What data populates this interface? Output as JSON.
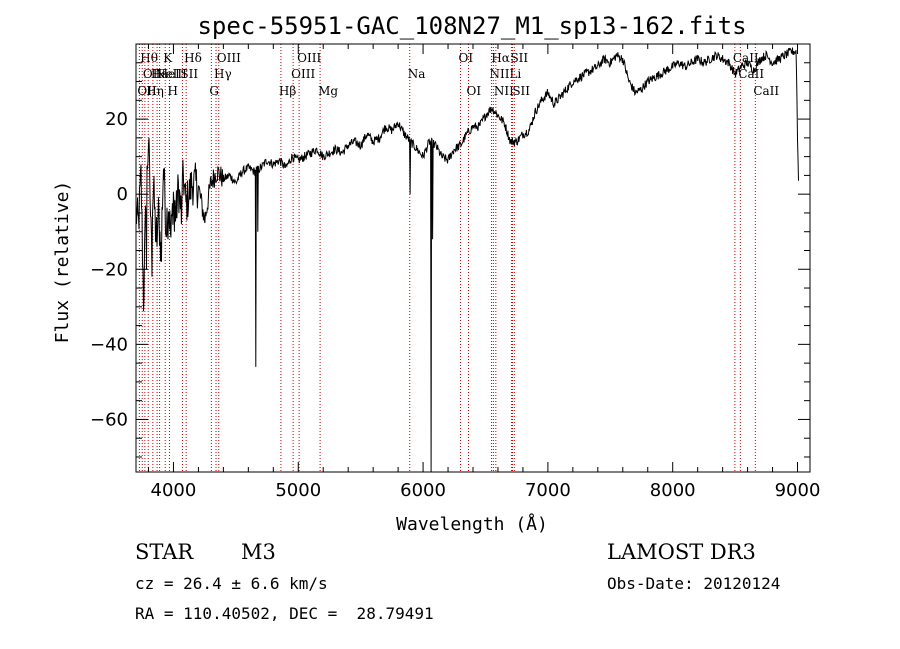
{
  "chart_data": {
    "type": "line",
    "title": "spec-55951-GAC_108N27_M1_sp13-162.fits",
    "xlabel": "Wavelength (Å)",
    "ylabel": "Flux (relative)",
    "xlim": [
      3700,
      9100
    ],
    "ylim": [
      -74,
      40
    ],
    "xticks": [
      4000,
      5000,
      6000,
      7000,
      8000,
      9000
    ],
    "xtick_labels": [
      "4000",
      "5000",
      "6000",
      "7000",
      "8000",
      "9000"
    ],
    "yticks": [
      -60,
      -40,
      -20,
      0,
      20
    ],
    "ytick_labels": [
      "−60",
      "−40",
      "−20",
      "0",
      "20"
    ],
    "colors": {
      "spectrum": "#000000",
      "line_marker": "#cc0000"
    },
    "series": [
      {
        "name": "spectrum",
        "anchors": [
          [
            3700,
            -5
          ],
          [
            3720,
            -8
          ],
          [
            3740,
            5
          ],
          [
            3760,
            -28
          ],
          [
            3780,
            -2
          ],
          [
            3800,
            15
          ],
          [
            3820,
            -10
          ],
          [
            3840,
            2
          ],
          [
            3860,
            -12
          ],
          [
            3880,
            -5
          ],
          [
            3900,
            -15
          ],
          [
            3920,
            8
          ],
          [
            3940,
            -8
          ],
          [
            3960,
            -2
          ],
          [
            3980,
            -12
          ],
          [
            4000,
            0
          ],
          [
            4020,
            -6
          ],
          [
            4040,
            2
          ],
          [
            4060,
            -4
          ],
          [
            4080,
            5
          ],
          [
            4100,
            -3
          ],
          [
            4150,
            3
          ],
          [
            4200,
            2
          ],
          [
            4250,
            -7
          ],
          [
            4300,
            3
          ],
          [
            4350,
            6
          ],
          [
            4400,
            4
          ],
          [
            4450,
            5
          ],
          [
            4500,
            3
          ],
          [
            4550,
            6
          ],
          [
            4600,
            7
          ],
          [
            4650,
            6
          ],
          [
            4700,
            7
          ],
          [
            4750,
            9
          ],
          [
            4800,
            8
          ],
          [
            4850,
            9
          ],
          [
            4900,
            7
          ],
          [
            4950,
            10
          ],
          [
            5000,
            9
          ],
          [
            5050,
            10
          ],
          [
            5100,
            11
          ],
          [
            5150,
            12
          ],
          [
            5200,
            10
          ],
          [
            5250,
            11
          ],
          [
            5300,
            12
          ],
          [
            5350,
            11
          ],
          [
            5400,
            13
          ],
          [
            5450,
            14
          ],
          [
            5500,
            13
          ],
          [
            5550,
            16
          ],
          [
            5600,
            14
          ],
          [
            5650,
            15
          ],
          [
            5700,
            18
          ],
          [
            5750,
            17
          ],
          [
            5800,
            19
          ],
          [
            5850,
            16
          ],
          [
            5900,
            14
          ],
          [
            5950,
            12
          ],
          [
            6000,
            10
          ],
          [
            6050,
            14
          ],
          [
            6100,
            13
          ],
          [
            6150,
            10
          ],
          [
            6200,
            9
          ],
          [
            6250,
            12
          ],
          [
            6300,
            13
          ],
          [
            6350,
            16
          ],
          [
            6400,
            18
          ],
          [
            6450,
            18
          ],
          [
            6500,
            21
          ],
          [
            6550,
            23
          ],
          [
            6600,
            21
          ],
          [
            6650,
            19
          ],
          [
            6700,
            14
          ],
          [
            6750,
            14
          ],
          [
            6800,
            16
          ],
          [
            6850,
            17
          ],
          [
            6900,
            22
          ],
          [
            6950,
            25
          ],
          [
            7000,
            27
          ],
          [
            7050,
            24
          ],
          [
            7100,
            26
          ],
          [
            7150,
            28
          ],
          [
            7200,
            30
          ],
          [
            7250,
            31
          ],
          [
            7300,
            32
          ],
          [
            7350,
            33
          ],
          [
            7400,
            34
          ],
          [
            7450,
            36
          ],
          [
            7500,
            35
          ],
          [
            7550,
            37
          ],
          [
            7600,
            36
          ],
          [
            7650,
            30
          ],
          [
            7700,
            27
          ],
          [
            7750,
            28
          ],
          [
            7800,
            30
          ],
          [
            7850,
            31
          ],
          [
            7900,
            32
          ],
          [
            7950,
            33
          ],
          [
            8000,
            34
          ],
          [
            8050,
            35
          ],
          [
            8100,
            34
          ],
          [
            8150,
            35
          ],
          [
            8200,
            36
          ],
          [
            8250,
            35
          ],
          [
            8300,
            36
          ],
          [
            8350,
            37
          ],
          [
            8400,
            36
          ],
          [
            8450,
            35
          ],
          [
            8500,
            32
          ],
          [
            8550,
            34
          ],
          [
            8600,
            35
          ],
          [
            8650,
            33
          ],
          [
            8700,
            36
          ],
          [
            8750,
            37
          ],
          [
            8800,
            35
          ],
          [
            8850,
            36
          ],
          [
            8900,
            37
          ],
          [
            8950,
            38
          ],
          [
            8990,
            38
          ],
          [
            9000,
            15
          ],
          [
            9010,
            1
          ]
        ],
        "spikes": [
          [
            3765,
            -28
          ],
          [
            3785,
            -20
          ],
          [
            3830,
            -22
          ],
          [
            3870,
            -14
          ],
          [
            3905,
            -18
          ],
          [
            3955,
            -12
          ],
          [
            4010,
            -10
          ],
          [
            4065,
            -8
          ],
          [
            4660,
            -46
          ],
          [
            4675,
            -10
          ],
          [
            5895,
            0
          ],
          [
            6065,
            -74
          ],
          [
            6075,
            -12
          ]
        ]
      }
    ],
    "line_markers": [
      {
        "wl": 3727,
        "label": "OII",
        "row": 2
      },
      {
        "wl": 3750,
        "label": "Hθ",
        "row": 0
      },
      {
        "wl": 3771,
        "label": "OII",
        "row": 1
      },
      {
        "wl": 3798,
        "label": "Hη",
        "row": 2
      },
      {
        "wl": 3835,
        "label": "Hε",
        "row": 1
      },
      {
        "wl": 3869,
        "label": "NeIII",
        "row": 1
      },
      {
        "wl": 3889,
        "label": "HeI",
        "row": 1
      },
      {
        "wl": 3934,
        "label": "K",
        "row": 0
      },
      {
        "wl": 3968,
        "label": "H",
        "row": 2
      },
      {
        "wl": 4072,
        "label": "SII",
        "row": 1
      },
      {
        "wl": 4102,
        "label": "Hδ",
        "row": 0
      },
      {
        "wl": 4304,
        "label": "G",
        "row": 2
      },
      {
        "wl": 4341,
        "label": "Hγ",
        "row": 1
      },
      {
        "wl": 4363,
        "label": "OIII",
        "row": 0
      },
      {
        "wl": 4861,
        "label": "Hβ",
        "row": 2
      },
      {
        "wl": 4959,
        "label": "OIII",
        "row": 1
      },
      {
        "wl": 5007,
        "label": "OIII",
        "row": 0
      },
      {
        "wl": 5175,
        "label": "Mg",
        "row": 2
      },
      {
        "wl": 5893,
        "label": "Na",
        "row": 1
      },
      {
        "wl": 6300,
        "label": "OI",
        "row": 0
      },
      {
        "wl": 6364,
        "label": "OI",
        "row": 2
      },
      {
        "wl": 6548,
        "label": "NII",
        "row": 1
      },
      {
        "wl": 6563,
        "label": "Hα",
        "row": 0
      },
      {
        "wl": 6583,
        "label": "NII",
        "row": 2
      },
      {
        "wl": 6708,
        "label": "Li",
        "row": 1
      },
      {
        "wl": 6716,
        "label": "SII",
        "row": 0
      },
      {
        "wl": 6731,
        "label": "SII",
        "row": 2
      },
      {
        "wl": 8498,
        "label": "CaII",
        "row": 0
      },
      {
        "wl": 8542,
        "label": "CaII",
        "row": 1
      },
      {
        "wl": 8662,
        "label": "CaII",
        "row": 2
      }
    ]
  },
  "info": {
    "object_class": "STAR",
    "subclass": "M3",
    "survey": "LAMOST DR3",
    "redshift_line": "cz = 26.4 ± 6.6 km/s",
    "obs_date": "Obs-Date: 20120124",
    "coords_line": "RA = 110.40502, DEC =  28.79491"
  }
}
